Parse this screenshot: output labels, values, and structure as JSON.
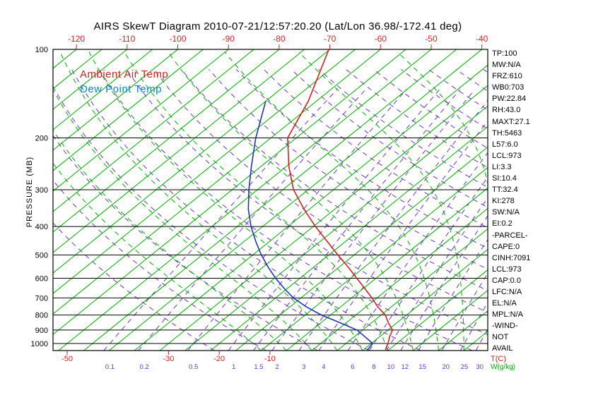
{
  "title": "AIRS SkewT Diagram 2010-07-21/12:57:20.20 (Lat/Lon 36.98/-172.41 deg)",
  "legend": {
    "temp_label": "Ambient Air Temp",
    "dew_label": "Dew Point Temp"
  },
  "axes": {
    "left": {
      "label": "PRESSURE (MB)"
    },
    "bottom_units": {
      "temp": "T(C)",
      "mixing": "W(g/kg)"
    }
  },
  "stats": [
    "TP:100",
    "MW:N/A",
    "FRZ:610",
    "WB0:703",
    "PW:22.84",
    "RH:43.0",
    "MAXT:27.1",
    "TH:5463",
    "L57:6.0",
    "LCL:973",
    "LI:3.3",
    "SI:10.4",
    "TT:32.4",
    "KI:278",
    "SW:N/A",
    "EI:0.2",
    "-PARCEL-",
    "CAPE:0",
    "CINH:7091",
    "LCL:973",
    "CAP:0.0",
    "LFC:N/A",
    "EL:N/A",
    "MPL:N/A",
    "-WIND-",
    "NOT",
    "AVAIL"
  ],
  "colors": {
    "red": "#cc2222",
    "blue_curve": "#2233bb",
    "blue_label": "#0088cc",
    "green": "#00aa00",
    "purple": "#6633cc",
    "black": "#000000"
  },
  "chart_data": {
    "type": "line",
    "projection": "skew-t-log-p",
    "title": "AIRS SkewT Diagram 2010-07-21/12:57:20.20 (Lat/Lon 36.98/-172.41 deg)",
    "ylabel": "PRESSURE (MB)",
    "y_scale": "log",
    "pressure_ticks_mb": [
      100,
      200,
      300,
      400,
      500,
      600,
      700,
      800,
      900,
      1000
    ],
    "pressure_range_mb": [
      100,
      1057
    ],
    "top_temp_ticks_c": [
      -120,
      -110,
      -100,
      -90,
      -80,
      -70,
      -60,
      -50,
      -40
    ],
    "bottom_temp_ticks_c": [
      -50,
      -30,
      -20,
      -10
    ],
    "mixing_ratio_ticks_g_kg": [
      0.1,
      0.2,
      0.5,
      1,
      1.5,
      2,
      3,
      4,
      6,
      8,
      10,
      12,
      15,
      20,
      25,
      30
    ],
    "isotherms_c": {
      "start": -130,
      "end": 45,
      "step": 5
    },
    "dry_adiabats_theta_k": {
      "start": 250,
      "end": 440,
      "step": 10
    },
    "moist_adiabats_surface_c": [
      -10,
      -5,
      0,
      5,
      10,
      15,
      20,
      25,
      30,
      35,
      40
    ],
    "series": [
      {
        "name": "Ambient Air Temp",
        "color_key": "red",
        "points_p_mb_t_c": [
          [
            1050,
            14.3
          ],
          [
            1000,
            13.3
          ],
          [
            950,
            12.0
          ],
          [
            900,
            10.9
          ],
          [
            850,
            8.3
          ],
          [
            800,
            5.8
          ],
          [
            750,
            2.3
          ],
          [
            700,
            -1.0
          ],
          [
            650,
            -4.7
          ],
          [
            600,
            -8.8
          ],
          [
            550,
            -13.2
          ],
          [
            500,
            -18.2
          ],
          [
            450,
            -23.6
          ],
          [
            400,
            -29.6
          ],
          [
            350,
            -36.0
          ],
          [
            300,
            -42.9
          ],
          [
            250,
            -49.5
          ],
          [
            200,
            -56.7
          ],
          [
            150,
            -61.6
          ],
          [
            100,
            -70.2
          ]
        ]
      },
      {
        "name": "Dew Point Temp",
        "color_key": "blue_curve",
        "points_p_mb_t_c": [
          [
            1050,
            10.8
          ],
          [
            1000,
            10.3
          ],
          [
            950,
            7.2
          ],
          [
            900,
            3.9
          ],
          [
            850,
            -1.2
          ],
          [
            800,
            -6.8
          ],
          [
            750,
            -11.8
          ],
          [
            700,
            -16.5
          ],
          [
            650,
            -20.6
          ],
          [
            600,
            -24.8
          ],
          [
            550,
            -29.0
          ],
          [
            500,
            -33.3
          ],
          [
            450,
            -37.7
          ],
          [
            400,
            -42.3
          ],
          [
            350,
            -47.0
          ],
          [
            300,
            -51.7
          ],
          [
            250,
            -56.9
          ],
          [
            200,
            -63.0
          ],
          [
            150,
            -70.0
          ]
        ]
      }
    ]
  }
}
